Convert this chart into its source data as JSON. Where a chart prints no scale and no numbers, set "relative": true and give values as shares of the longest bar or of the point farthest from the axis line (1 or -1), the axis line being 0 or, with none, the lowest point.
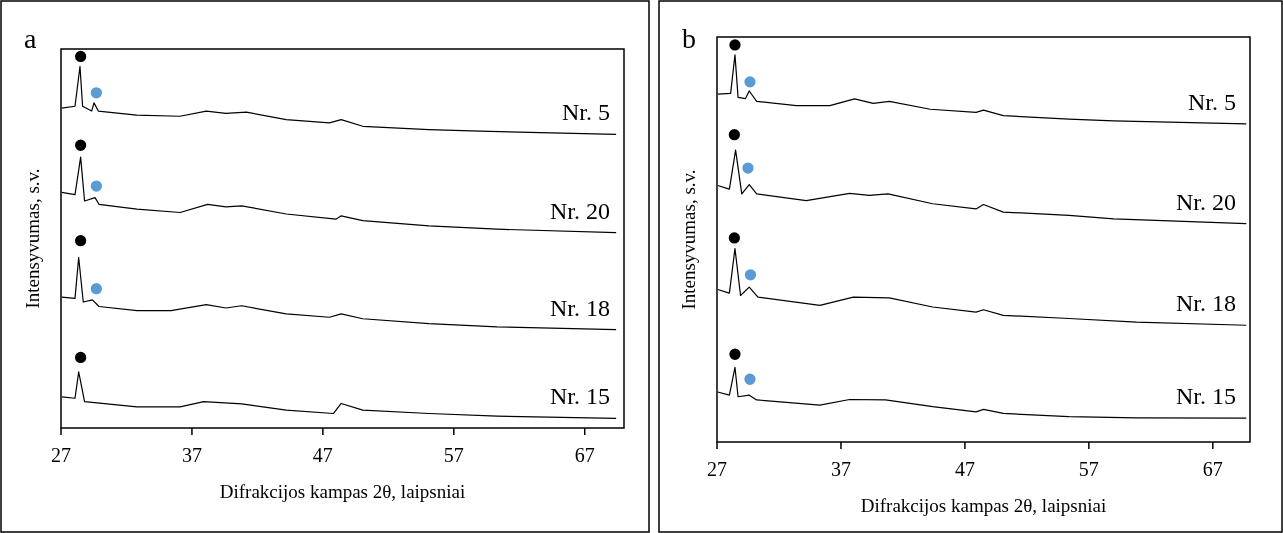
{
  "chart_data": [
    {
      "type": "line",
      "title": "a",
      "xlabel": "Difrakcijos kampas 2θ, laipsniai",
      "ylabel": "Intensyvumas, s.v.",
      "relative": true,
      "xlim": [
        27,
        70
      ],
      "xticks": [
        27,
        37,
        47,
        57,
        67
      ],
      "grid": false,
      "marker": "none",
      "line_style": "solid",
      "series": [
        {
          "name": "Nr. 5",
          "color": "#000000",
          "x": [
            27.05,
            28.07,
            28.45,
            28.65,
            29.34,
            29.52,
            29.85,
            32.78,
            36.08,
            38.1,
            39.6,
            41.15,
            44.2,
            47.5,
            48.4,
            50.05,
            55.1,
            59.0,
            69.4
          ],
          "values": [
            0.861,
            0.866,
            0.973,
            0.866,
            0.853,
            0.875,
            0.853,
            0.842,
            0.839,
            0.853,
            0.847,
            0.85,
            0.83,
            0.821,
            0.83,
            0.812,
            0.803,
            0.799,
            0.79
          ]
        },
        {
          "name": "Nr. 20",
          "color": "#000000",
          "x": [
            27.05,
            28.07,
            28.5,
            28.8,
            29.6,
            29.9,
            32.8,
            36.1,
            38.2,
            39.6,
            40.8,
            44.2,
            48.0,
            48.4,
            50.05,
            55.1,
            60.3,
            69.4
          ],
          "values": [
            0.634,
            0.628,
            0.729,
            0.611,
            0.62,
            0.602,
            0.589,
            0.58,
            0.602,
            0.595,
            0.598,
            0.576,
            0.562,
            0.571,
            0.558,
            0.544,
            0.535,
            0.526
          ]
        },
        {
          "name": "Nr. 18",
          "color": "#000000",
          "x": [
            27.05,
            28.07,
            28.35,
            28.7,
            29.4,
            29.9,
            32.8,
            35.4,
            38.1,
            39.6,
            40.8,
            44.2,
            47.5,
            48.4,
            50.05,
            55.1,
            60.3,
            69.4
          ],
          "values": [
            0.352,
            0.349,
            0.459,
            0.339,
            0.345,
            0.327,
            0.316,
            0.316,
            0.332,
            0.323,
            0.329,
            0.307,
            0.298,
            0.307,
            0.294,
            0.281,
            0.272,
            0.265
          ]
        },
        {
          "name": "Nr. 15",
          "color": "#000000",
          "x": [
            27.05,
            28.07,
            28.35,
            28.8,
            32.8,
            36.1,
            37.9,
            40.8,
            44.2,
            47.8,
            48.4,
            50.05,
            55.1,
            60.3,
            69.4
          ],
          "values": [
            0.084,
            0.08,
            0.151,
            0.071,
            0.057,
            0.057,
            0.071,
            0.065,
            0.048,
            0.039,
            0.066,
            0.048,
            0.039,
            0.032,
            0.026
          ]
        },
        {
          "type": "scatter",
          "color": "#000000",
          "marker": "circle",
          "x": [
            28.5,
            28.5,
            28.5,
            28.5
          ],
          "values": [
            1.0,
            0.761,
            0.504,
            0.19
          ]
        },
        {
          "type": "scatter",
          "color": "#5b9bd5",
          "marker": "circle",
          "x": [
            29.7,
            29.7,
            29.7
          ],
          "values": [
            0.902,
            0.651,
            0.375
          ]
        }
      ]
    },
    {
      "type": "line",
      "title": "b",
      "xlabel": "Difrakcijos kampas 2θ, laipsniai",
      "ylabel": "Intensyvumas, s.v.",
      "relative": true,
      "xlim": [
        27,
        70
      ],
      "xticks": [
        27,
        37,
        47,
        57,
        67
      ],
      "grid": false,
      "marker": "none",
      "line_style": "solid",
      "series": [
        {
          "name": "Nr. 5",
          "color": "#000000",
          "x": [
            27.06,
            28.1,
            28.45,
            28.7,
            29.3,
            29.6,
            30.2,
            33.4,
            36.1,
            38.1,
            39.6,
            40.9,
            44.2,
            47.9,
            48.5,
            50.1,
            55.4,
            59.0,
            69.7
          ],
          "values": [
            0.876,
            0.878,
            0.975,
            0.868,
            0.865,
            0.884,
            0.858,
            0.847,
            0.847,
            0.864,
            0.853,
            0.858,
            0.838,
            0.83,
            0.836,
            0.822,
            0.813,
            0.809,
            0.801
          ]
        },
        {
          "name": "Nr. 20",
          "color": "#000000",
          "x": [
            27.06,
            28.0,
            28.5,
            29.0,
            29.6,
            30.2,
            34.2,
            37.7,
            39.3,
            40.8,
            44.4,
            47.9,
            48.5,
            50.1,
            55.4,
            59.0,
            69.7
          ],
          "values": [
            0.646,
            0.637,
            0.735,
            0.625,
            0.648,
            0.625,
            0.608,
            0.626,
            0.621,
            0.625,
            0.6,
            0.587,
            0.598,
            0.579,
            0.571,
            0.562,
            0.55
          ]
        },
        {
          "name": "Nr. 18",
          "color": "#000000",
          "x": [
            27.06,
            28.0,
            28.45,
            28.9,
            29.6,
            30.3,
            35.3,
            38.0,
            40.9,
            44.4,
            47.9,
            48.5,
            50.1,
            55.4,
            60.85,
            69.7
          ],
          "values": [
            0.384,
            0.375,
            0.487,
            0.369,
            0.39,
            0.365,
            0.344,
            0.365,
            0.363,
            0.34,
            0.327,
            0.333,
            0.319,
            0.311,
            0.302,
            0.294
          ]
        },
        {
          "name": "Nr. 15",
          "color": "#000000",
          "x": [
            27.06,
            28.0,
            28.45,
            28.7,
            29.6,
            30.2,
            35.3,
            37.7,
            40.6,
            44.4,
            47.9,
            48.5,
            50.1,
            55.4,
            60.85,
            69.7
          ],
          "values": [
            0.126,
            0.118,
            0.188,
            0.114,
            0.118,
            0.106,
            0.093,
            0.107,
            0.106,
            0.089,
            0.076,
            0.082,
            0.072,
            0.064,
            0.061,
            0.06
          ]
        },
        {
          "type": "scatter",
          "color": "#000000",
          "marker": "circle",
          "x": [
            28.45,
            28.4,
            28.4,
            28.45
          ],
          "values": [
            1.0,
            0.774,
            0.514,
            0.221
          ]
        },
        {
          "type": "scatter",
          "color": "#5b9bd5",
          "marker": "circle",
          "x": [
            29.66,
            29.5,
            29.7,
            29.66
          ],
          "values": [
            0.907,
            0.69,
            0.421,
            0.158
          ]
        }
      ]
    }
  ]
}
